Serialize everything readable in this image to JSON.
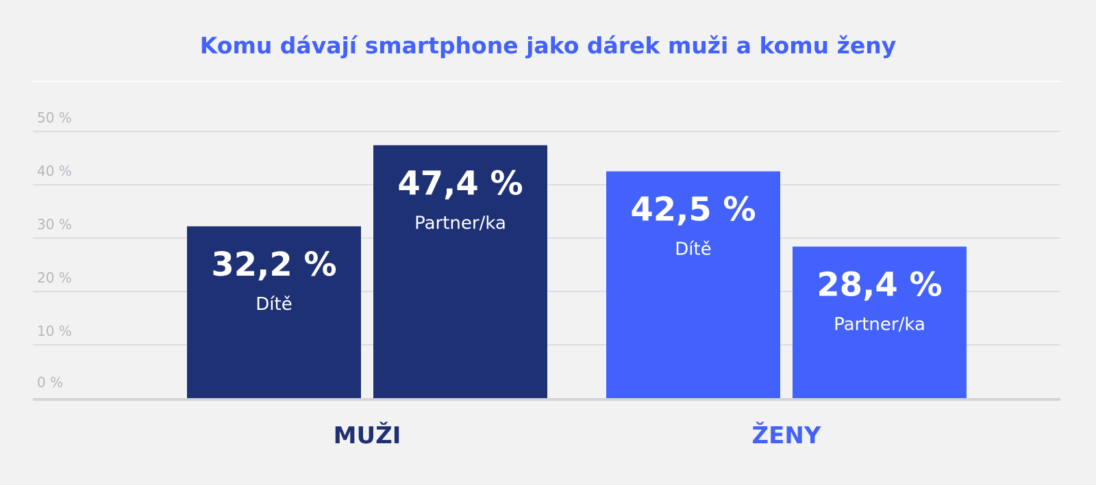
{
  "chart_data": {
    "type": "bar",
    "title": "Komu dávají smartphone jako dárek muži a komu ženy",
    "y_ticks": [
      "0 %",
      "10 %",
      "20 %",
      "30 %",
      "40 %",
      "50 %"
    ],
    "ylim": [
      0,
      52
    ],
    "grid": true,
    "groups": [
      {
        "name": "MUŽI",
        "color": "#1f3175",
        "bars": [
          {
            "category": "Dítě",
            "value": 32.2,
            "value_label": "32,2 %"
          },
          {
            "category": "Partner/ka",
            "value": 47.4,
            "value_label": "47,4 %"
          }
        ]
      },
      {
        "name": "ŽENY",
        "color": "#4262fb",
        "bars": [
          {
            "category": "Dítě",
            "value": 42.5,
            "value_label": "42,5 %"
          },
          {
            "category": "Partner/ka",
            "value": 28.4,
            "value_label": "28,4 %"
          }
        ]
      }
    ],
    "colors": {
      "title": "#4262fb",
      "gridline": "#dcdde1",
      "baseline": "#d3d4d8",
      "tick_text": "#b5b7be"
    }
  }
}
